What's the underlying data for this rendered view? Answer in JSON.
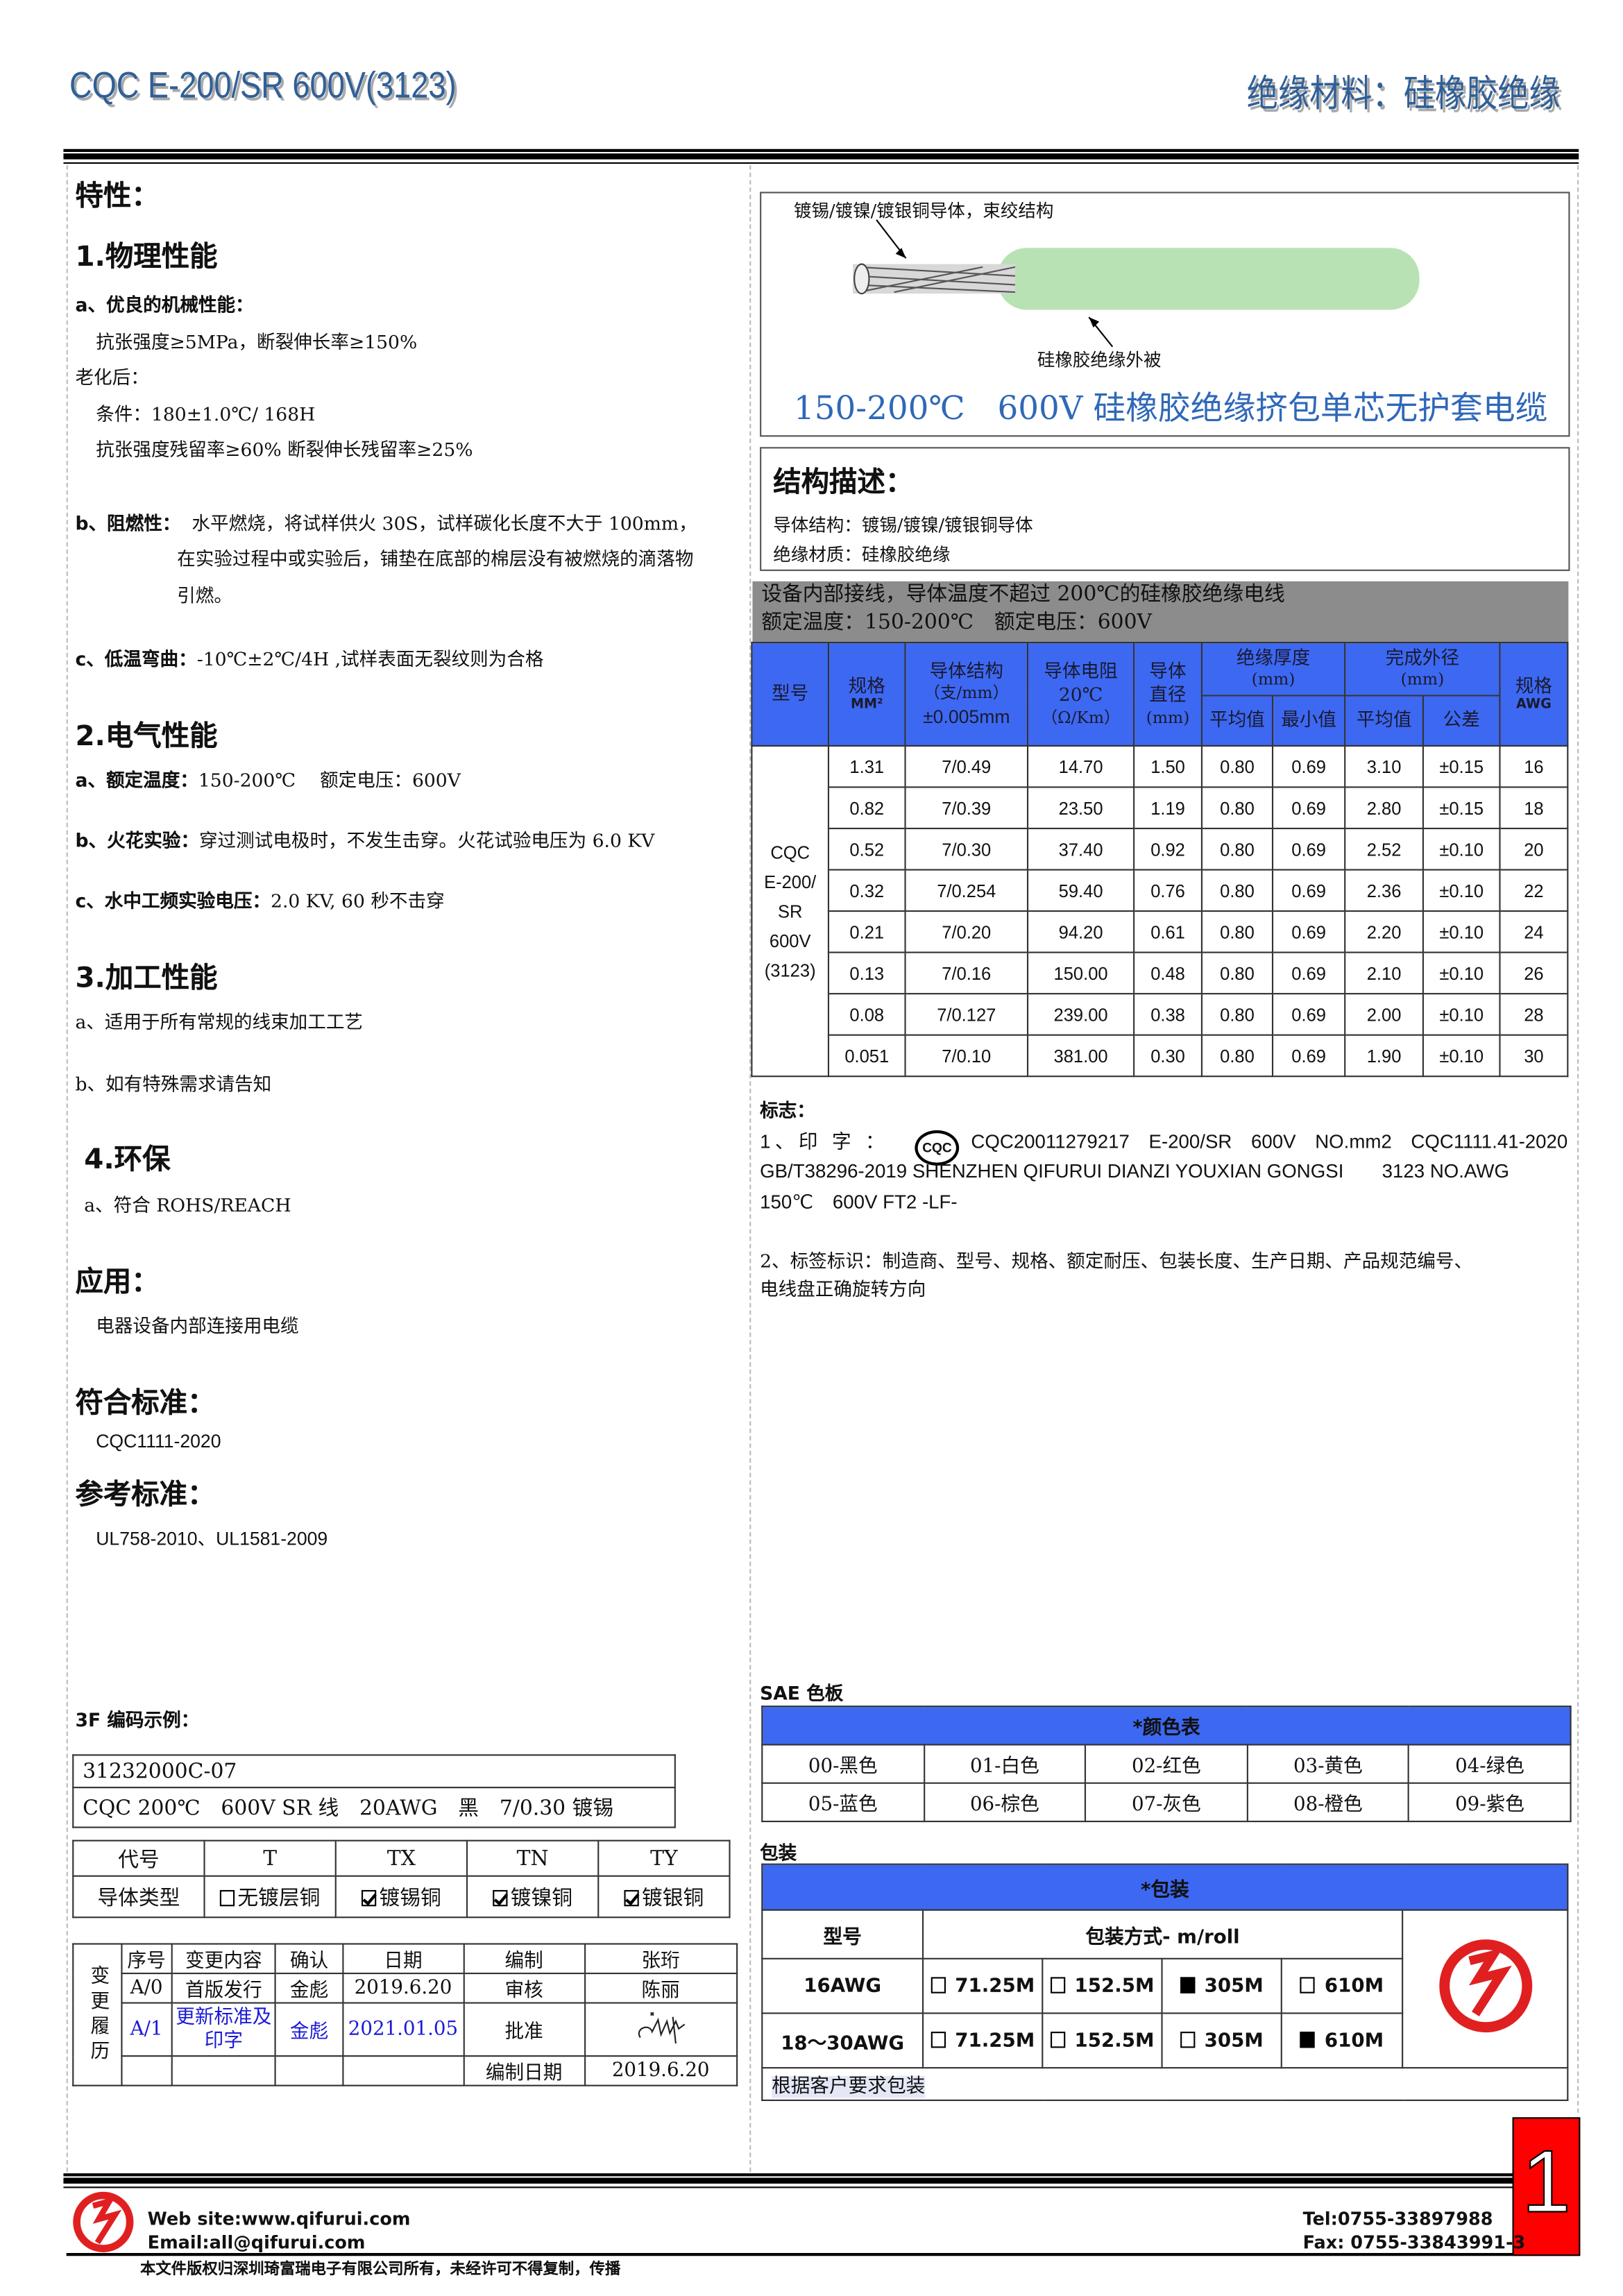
{
  "header": {
    "title": "CQC E-200/SR 600V(3123)",
    "category": "绝缘材料：硅橡胶绝缘"
  },
  "left": {
    "features_title": "特性：",
    "physical": {
      "title": "1.物理性能",
      "a_label": "a、优良的机械性能：",
      "a_line1": "抗张强度≥5MPa，断裂伸长率≥150%",
      "aging_label": "老化后：",
      "aging_cond": "条件：180±1.0℃/ 168H",
      "aging_result": "抗张强度残留率≥60% 断裂伸长残留率≥25%",
      "b_label": "b、阻燃性：",
      "b_text1": "水平燃烧，将试样供火 30S，试样碳化长度不大于 100mm，",
      "b_text2": "在实验过程中或实验后，铺垫在底部的棉层没有被燃烧的滴落物",
      "b_text3": "引燃。",
      "c_label": "c、低温弯曲：",
      "c_text": "-10℃±2℃/4H ,试样表面无裂纹则为合格"
    },
    "electrical": {
      "title": "2.电气性能",
      "a_label": "a、额定温度：",
      "a_text": "150-200℃　 额定电压：600V",
      "b_label": "b、火花实验：",
      "b_text": "穿过测试电极时，不发生击穿。火花试验电压为 6.0 KV",
      "c_label": "c、水中工频实验电压：",
      "c_text": "2.0 KV, 60 秒不击穿"
    },
    "processing": {
      "title": "3.加工性能",
      "a": "a、适用于所有常规的线束加工工艺",
      "b": "b、如有特殊需求请告知"
    },
    "env": {
      "title": "4.环保",
      "a": "a、符合 ROHS/REACH"
    },
    "application": {
      "title": "应用：",
      "text": "电器设备内部连接用电缆"
    },
    "standard": {
      "title": "符合标准：",
      "text": "CQC1111-2020"
    },
    "reference": {
      "title": "参考标准：",
      "text": "UL758-2010、UL1581-2009"
    },
    "code_example": {
      "title": "3F 编码示例：",
      "code": "31232000C-07",
      "desc": "CQC 200℃　600V SR 线　20AWG　黑　7/0.30 镀锡"
    },
    "conductor_table": {
      "headers": [
        "代号",
        "T",
        "TX",
        "TN",
        "TY"
      ],
      "row_label": "导体类型",
      "options": [
        {
          "label": "无镀层铜",
          "checked": false
        },
        {
          "label": "镀锡铜",
          "checked": true
        },
        {
          "label": "镀镍铜",
          "checked": true
        },
        {
          "label": "镀银铜",
          "checked": true
        }
      ]
    },
    "change_history": {
      "side_label": "变更履历",
      "headers": [
        "序号",
        "变更内容",
        "确认",
        "日期",
        "编制",
        "张珩"
      ],
      "rows": [
        [
          "A/0",
          "首版发行",
          "金彪",
          "2019.6.20",
          "审核",
          "陈丽"
        ],
        [
          "A/1",
          "更新标准及印字",
          "金彪",
          "2021.01.05",
          "批准",
          ""
        ]
      ],
      "footer": [
        "编制日期",
        "2019.6.20"
      ],
      "signature": "signature"
    }
  },
  "right": {
    "cable": {
      "conductor_note": "镀锡/镀镍/镀银铜导体，束绞结构",
      "insulation_note": "硅橡胶绝缘外被",
      "title": "150-200℃　600V 硅橡胶绝缘挤包单芯无护套电缆",
      "insulation_color": "#b9e2b4"
    },
    "structure": {
      "title": "结构描述：",
      "conductor": "导体结构：镀锡/镀镍/镀银铜导体",
      "insulation": "绝缘材质：硅橡胶绝缘"
    },
    "band": {
      "line1": "设备内部接线，导体温度不超过 200℃的硅橡胶绝缘电线",
      "line2": "额定温度：150-200℃　额定电压：600V"
    },
    "spec_table": {
      "headers": {
        "model": "型号",
        "size": "规格",
        "size_unit": "MM²",
        "cond": "导体结构",
        "cond_unit": "（支/mm）",
        "cond_tol": "±0.005mm",
        "res": "导体电阻",
        "res_temp": "20℃",
        "res_unit": "（Ω/Km）",
        "dia": "导体",
        "dia2": "直径",
        "dia_unit": "(mm)",
        "ins": "绝缘厚度",
        "ins_unit": "(mm)",
        "od": "完成外径",
        "od_unit": "(mm)",
        "awg": "规格",
        "awg_unit": "AWG",
        "avg": "平均值",
        "min": "最小值",
        "avg2": "平均值",
        "tol": "公差"
      },
      "model": [
        "CQC",
        "E-200/",
        "SR",
        "600V",
        "(3123)"
      ],
      "rows": [
        [
          "1.31",
          "7/0.49",
          "14.70",
          "1.50",
          "0.80",
          "0.69",
          "3.10",
          "±0.15",
          "16"
        ],
        [
          "0.82",
          "7/0.39",
          "23.50",
          "1.19",
          "0.80",
          "0.69",
          "2.80",
          "±0.15",
          "18"
        ],
        [
          "0.52",
          "7/0.30",
          "37.40",
          "0.92",
          "0.80",
          "0.69",
          "2.52",
          "±0.10",
          "20"
        ],
        [
          "0.32",
          "7/0.254",
          "59.40",
          "0.76",
          "0.80",
          "0.69",
          "2.36",
          "±0.10",
          "22"
        ],
        [
          "0.21",
          "7/0.20",
          "94.20",
          "0.61",
          "0.80",
          "0.69",
          "2.20",
          "±0.10",
          "24"
        ],
        [
          "0.13",
          "7/0.16",
          "150.00",
          "0.48",
          "0.80",
          "0.69",
          "2.10",
          "±0.10",
          "26"
        ],
        [
          "0.08",
          "7/0.127",
          "239.00",
          "0.38",
          "0.80",
          "0.69",
          "2.00",
          "±0.10",
          "28"
        ],
        [
          "0.051",
          "7/0.10",
          "381.00",
          "0.30",
          "0.80",
          "0.69",
          "1.90",
          "±0.10",
          "30"
        ]
      ]
    },
    "marking": {
      "title": "标志：",
      "p1_label": "1、印 字 ：",
      "cqc_logo": "CQC",
      "p1_line1": "CQC20011279217　E-200/SR　600V　NO.mm2　CQC1111.41-2020",
      "p1_line2": "GB/T38296-2019 SHENZHEN QIFURUI DIANZI YOUXIAN GONGSI　　3123 NO.AWG",
      "p1_line3": "150℃　600V FT2 -LF-",
      "p2_line1": "2、标签标识：制造商、型号、规格、额定耐压、包装长度、生产日期、产品规范编号、",
      "p2_line2": "电线盘正确旋转方向"
    },
    "sae": {
      "title": "SAE 色板",
      "header": "*颜色表",
      "colors": [
        "00-黑色",
        "01-白色",
        "02-红色",
        "03-黄色",
        "04-绿色",
        "05-蓝色",
        "06-棕色",
        "07-灰色",
        "08-橙色",
        "09-紫色"
      ]
    },
    "packaging": {
      "title": "包装",
      "header": "*包装",
      "col_model": "型号",
      "col_method": "包装方式- m/roll",
      "rows": [
        {
          "model": "16AWG",
          "options": [
            {
              "label": "71.25M",
              "checked": false
            },
            {
              "label": "152.5M",
              "checked": false
            },
            {
              "label": "305M",
              "checked": true
            },
            {
              "label": "610M",
              "checked": false
            }
          ]
        },
        {
          "model": "18～30AWG",
          "options": [
            {
              "label": "71.25M",
              "checked": false
            },
            {
              "label": "152.5M",
              "checked": false
            },
            {
              "label": "305M",
              "checked": false
            },
            {
              "label": "610M",
              "checked": true
            }
          ]
        }
      ],
      "note": "根据客户要求包装"
    }
  },
  "footer": {
    "web": "Web site:www.qifurui.com",
    "email": "Email:all@qifurui.com",
    "tel": "Tel:0755-33897988",
    "fax": "Fax: 0755-33843991-3",
    "copyright": "本文件版权归深圳琦富瑞电子有限公司所有，未经许可不得复制，传播",
    "page_number": "1",
    "brand_color": "#e02020"
  }
}
